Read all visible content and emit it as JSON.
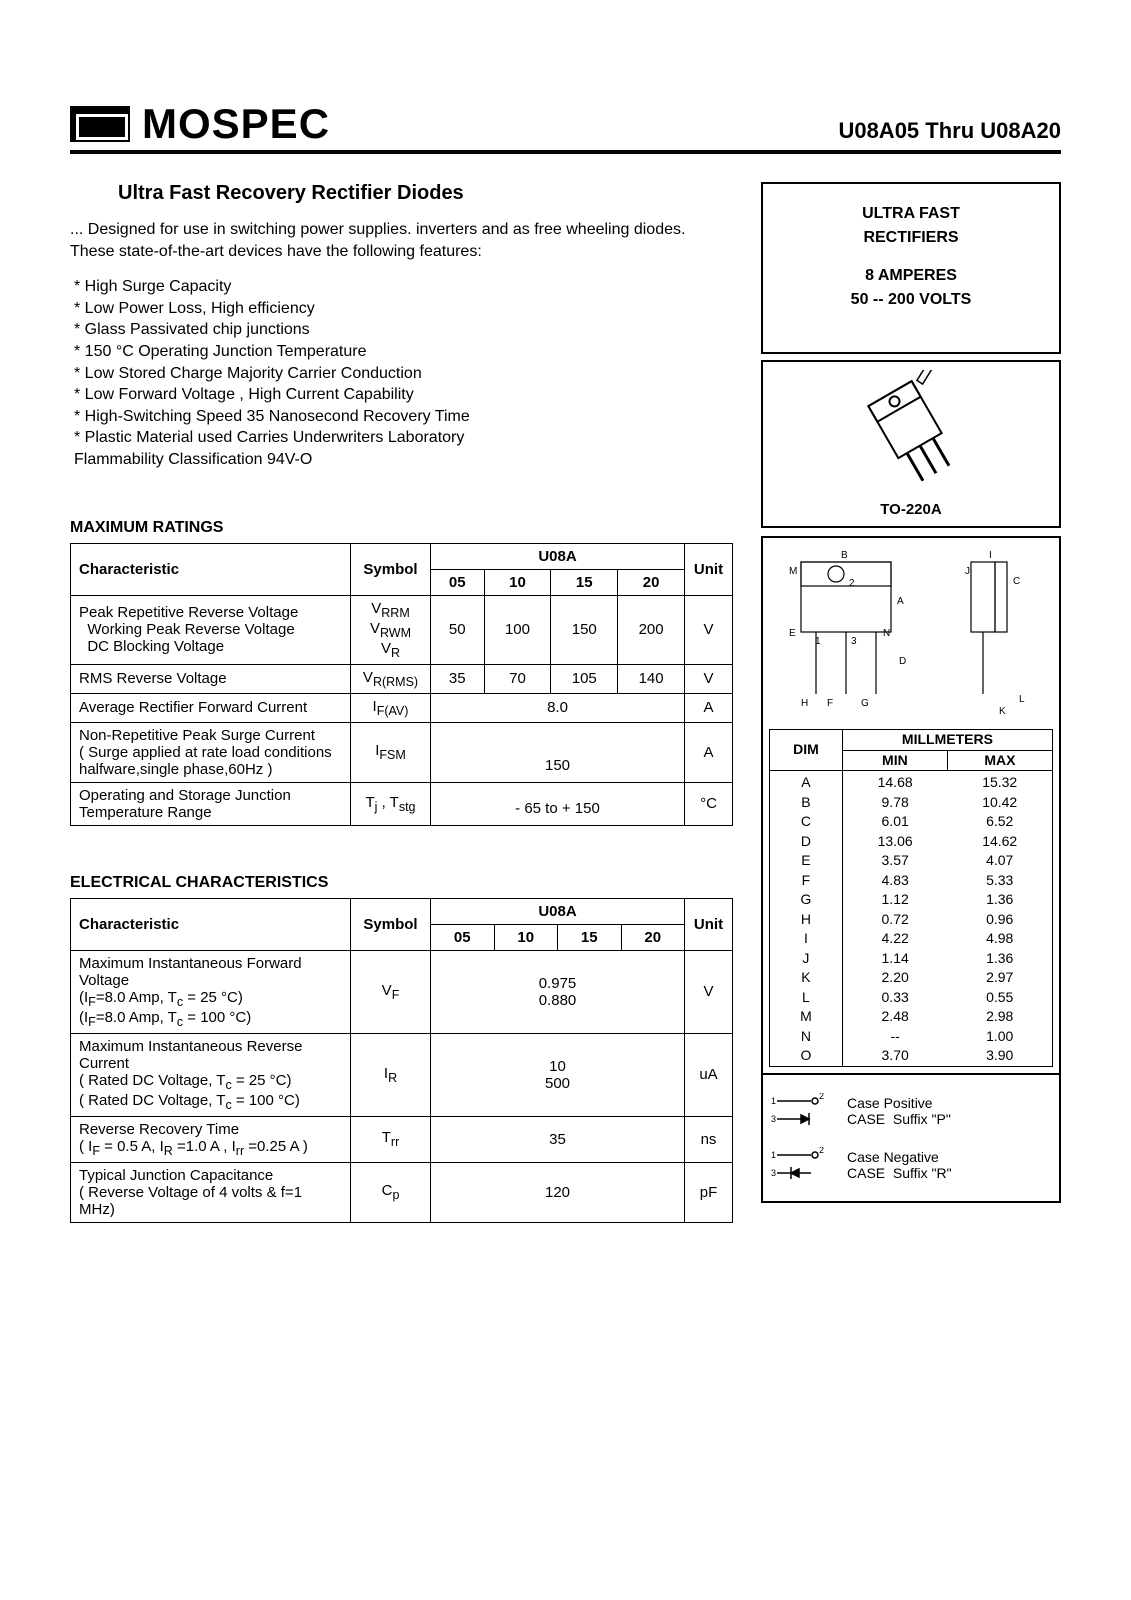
{
  "header": {
    "brand": "MOSPEC",
    "part_range": "U08A05  Thru  U08A20"
  },
  "title": "Ultra Fast Recovery Rectifier Diodes",
  "intro": "... Designed  for use in switching  power supplies. inverters and as free wheeling diodes. These state-of-the-art devices have the following features:",
  "features": [
    "* High Surge Capacity",
    "* Low Power Loss, High efficiency",
    "* Glass Passivated chip junctions",
    "* 150 °C Operating Junction Temperature",
    "* Low Stored Charge Majority Carrier Conduction",
    "* Low Forward Voltage , High Current Capability",
    "* High-Switching Speed 35 Nanosecond Recovery Time",
    "* Plastic Material used Carries Underwriters Laboratory",
    "  Flammability Classification 94V-O"
  ],
  "side": {
    "line1": "ULTRA FAST",
    "line2": "RECTIFIERS",
    "line3": "8 AMPERES",
    "line4": "50 -- 200 VOLTS",
    "package_label": "TO-220A",
    "dim_header": "MILLMETERS",
    "dim_cols": [
      "DIM",
      "MIN",
      "MAX"
    ],
    "dims": [
      {
        "d": "A",
        "min": "14.68",
        "max": "15.32"
      },
      {
        "d": "B",
        "min": "9.78",
        "max": "10.42"
      },
      {
        "d": "C",
        "min": "6.01",
        "max": "6.52"
      },
      {
        "d": "D",
        "min": "13.06",
        "max": "14.62"
      },
      {
        "d": "E",
        "min": "3.57",
        "max": "4.07"
      },
      {
        "d": "F",
        "min": "4.83",
        "max": "5.33"
      },
      {
        "d": "G",
        "min": "1.12",
        "max": "1.36"
      },
      {
        "d": "H",
        "min": "0.72",
        "max": "0.96"
      },
      {
        "d": "I",
        "min": "4.22",
        "max": "4.98"
      },
      {
        "d": "J",
        "min": "1.14",
        "max": "1.36"
      },
      {
        "d": "K",
        "min": "2.20",
        "max": "2.97"
      },
      {
        "d": "L",
        "min": "0.33",
        "max": "0.55"
      },
      {
        "d": "M",
        "min": "2.48",
        "max": "2.98"
      },
      {
        "d": "N",
        "min": "--",
        "max": "1.00"
      },
      {
        "d": "O",
        "min": "3.70",
        "max": "3.90"
      }
    ],
    "case_pos_label": "Case Positive",
    "case_pos_suffix": "Suffix \"P\"",
    "case_neg_label": "Case Negative",
    "case_neg_suffix": "Suffix \"R\"",
    "case_text": "CASE"
  },
  "max_ratings": {
    "heading": "MAXIMUM RATINGS",
    "cols": {
      "char": "Characteristic",
      "sym": "Symbol",
      "group": "U08A",
      "unit": "Unit",
      "subs": [
        "05",
        "10",
        "15",
        "20"
      ]
    },
    "rows": [
      {
        "char": "Peak Repetitive Reverse Voltage\nWorking Peak Reverse  Voltage\nDC Blocking Voltage",
        "char_indent": true,
        "sym": "V<sub>RRM</sub><br>V<sub>RWM</sub><br>V<sub>R</sub>",
        "vals": [
          "50",
          "100",
          "150",
          "200"
        ],
        "span": false,
        "unit": "V"
      },
      {
        "char": "RMS Reverse Voltage",
        "sym": "V<sub>R(RMS)</sub>",
        "vals": [
          "35",
          "70",
          "105",
          "140"
        ],
        "span": false,
        "unit": "V"
      },
      {
        "char": "Average Rectifier Forward Current",
        "sym": "I<sub>F(AV)</sub>",
        "vals": [
          "8.0"
        ],
        "span": true,
        "unit": "A"
      },
      {
        "char": "Non-Repetitive Peak Surge Current\n( Surge applied at rate load conditions\nhalfware,single phase,60Hz )",
        "sym": "I<sub>FSM</sub>",
        "vals": [
          "150"
        ],
        "span": true,
        "unit": "A",
        "val_bottom": true
      },
      {
        "char": "Operating and Storage Junction\nTemperature Range",
        "sym": "T<sub>j</sub> , T<sub>stg</sub>",
        "vals": [
          "- 65 to + 150"
        ],
        "span": true,
        "unit": "°C",
        "val_bottom": true
      }
    ]
  },
  "elec": {
    "heading": "ELECTRICAL  CHARACTERISTICS",
    "cols": {
      "char": "Characteristic",
      "sym": "Symbol",
      "group": "U08A",
      "unit": "Unit",
      "subs": [
        "05",
        "10",
        "15",
        "20"
      ]
    },
    "rows": [
      {
        "char": "Maximum Instantaneous Forward Voltage\n(I<sub>F</sub>=8.0 Amp, T<sub>c</sub> = 25  °C)\n(I<sub>F</sub>=8.0 Amp, T<sub>c</sub> = 100  °C)",
        "sym": "V<sub>F</sub>",
        "vals": [
          "0.975<br>0.880"
        ],
        "unit": "V"
      },
      {
        "char": "Maximum Instantaneous Reverse Current\n( Rated DC Voltage, T<sub>c</sub> = 25 °C)\n( Rated DC Voltage, T<sub>c</sub> = 100 °C)",
        "sym": "I<sub>R</sub>",
        "vals": [
          "10<br>500"
        ],
        "unit": "uA"
      },
      {
        "char": "Reverse Recovery Time\n( I<sub>F</sub> = 0.5 A, I<sub>R</sub> =1.0 A , I<sub>rr</sub> =0.25 A )",
        "sym": "T<sub>rr</sub>",
        "vals": [
          "35"
        ],
        "unit": "ns"
      },
      {
        "char": "Typical Junction Capacitance\n( Reverse Voltage of 4 volts & f=1 MHz)",
        "sym": "C<sub>p</sub>",
        "vals": [
          "120"
        ],
        "unit": "pF"
      }
    ]
  }
}
